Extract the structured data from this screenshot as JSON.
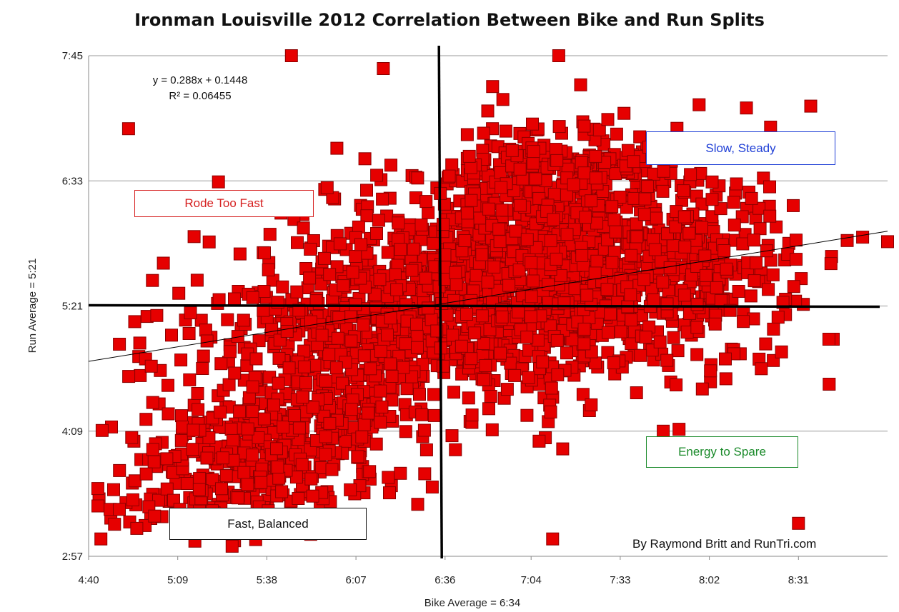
{
  "chart_data": {
    "type": "scatter",
    "title": "Ironman Louisville 2012 Correlation Between Bike and Run Splits",
    "xlabel": "Bike Average = 6:34",
    "ylabel": "Run Average = 5:21",
    "x_ticks": [
      "4:40",
      "5:09",
      "5:38",
      "6:07",
      "6:36",
      "7:04",
      "7:33",
      "8:02",
      "8:31"
    ],
    "y_ticks": [
      "7:45",
      "6:33",
      "5:21",
      "4:09",
      "2:57"
    ],
    "xlim": [
      "4:40",
      "9:00"
    ],
    "ylim": [
      "2:57",
      "7:45"
    ],
    "trendline": {
      "equation": "y = 0.288x + 0.1448",
      "r_squared": "R² = 0.06455"
    },
    "averages": {
      "bike": "6:34",
      "run": "5:21"
    },
    "marker_color": "#e60000",
    "marker_edge": "#8a0000",
    "quadrant_labels": [
      {
        "text": "Rode Too Fast",
        "color": "#d62020"
      },
      {
        "text": "Slow, Steady",
        "color": "#1f3fd6"
      },
      {
        "text": "Energy to Spare",
        "color": "#1a8a2a"
      },
      {
        "text": "Fast, Balanced",
        "color": "#111111"
      }
    ],
    "credit": "By Raymond Britt and RunTri.com",
    "gridlines": "horizontal",
    "point_count_estimate": 2400,
    "outliers": [
      {
        "x": "4:43",
        "y": "3:36"
      },
      {
        "x": "4:44",
        "y": "3:07"
      },
      {
        "x": "4:47",
        "y": "3:24"
      },
      {
        "x": "4:50",
        "y": "3:24"
      },
      {
        "x": "4:53",
        "y": "7:03"
      },
      {
        "x": "4:55",
        "y": "5:12"
      },
      {
        "x": "5:46",
        "y": "7:45"
      },
      {
        "x": "7:13",
        "y": "7:45"
      },
      {
        "x": "7:11",
        "y": "3:07"
      },
      {
        "x": "8:31",
        "y": "3:16"
      },
      {
        "x": "8:35",
        "y": "7:16"
      },
      {
        "x": "8:41",
        "y": "4:36"
      },
      {
        "x": "9:00",
        "y": "5:58"
      },
      {
        "x": "7:47",
        "y": "4:09"
      }
    ]
  }
}
